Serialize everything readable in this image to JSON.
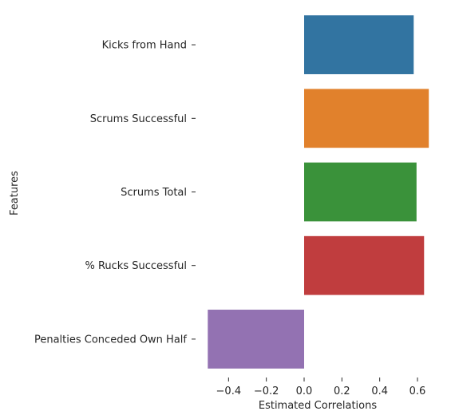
{
  "chart_data": {
    "type": "bar",
    "orientation": "horizontal",
    "categories": [
      "Kicks from Hand",
      "Scrums Successful",
      "Scrums Total",
      "% Rucks Successful",
      "Penalties Conceded Own Half"
    ],
    "values": [
      0.58,
      0.66,
      0.595,
      0.635,
      0.51
    ],
    "value_signs": [
      1,
      1,
      1,
      1,
      -1
    ],
    "colors": [
      "#3274a1",
      "#e1812c",
      "#3a923a",
      "#c03d3e",
      "#9372b2"
    ],
    "xlabel": "Estimated Correlations",
    "ylabel": "Features",
    "xlim": [
      -0.52,
      0.66
    ],
    "xticks": [
      -0.4,
      -0.2,
      0.0,
      0.2,
      0.4,
      0.6
    ],
    "xtick_labels": [
      "−0.4",
      "−0.2",
      "0.0",
      "0.2",
      "0.4",
      "0.6"
    ],
    "grid": false,
    "legend": "none"
  }
}
